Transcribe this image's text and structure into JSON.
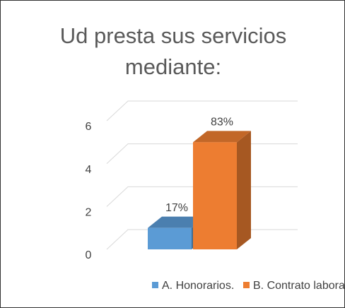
{
  "chart_data": {
    "type": "bar3d",
    "title": "Ud presta sus servicios mediante:",
    "categories": [
      null
    ],
    "series": [
      {
        "name": "A. Honorarios.",
        "color": "#5b9bd5",
        "values": [
          1
        ],
        "value_labels": [
          "17%"
        ]
      },
      {
        "name": "B. Contrato laboral.",
        "color": "#ed7d31",
        "values": [
          5
        ],
        "value_labels": [
          "83%"
        ]
      }
    ],
    "ylim": [
      0,
      6
    ],
    "yticks": [
      0,
      2,
      4,
      6
    ],
    "grid": true,
    "legend": "bottom"
  }
}
